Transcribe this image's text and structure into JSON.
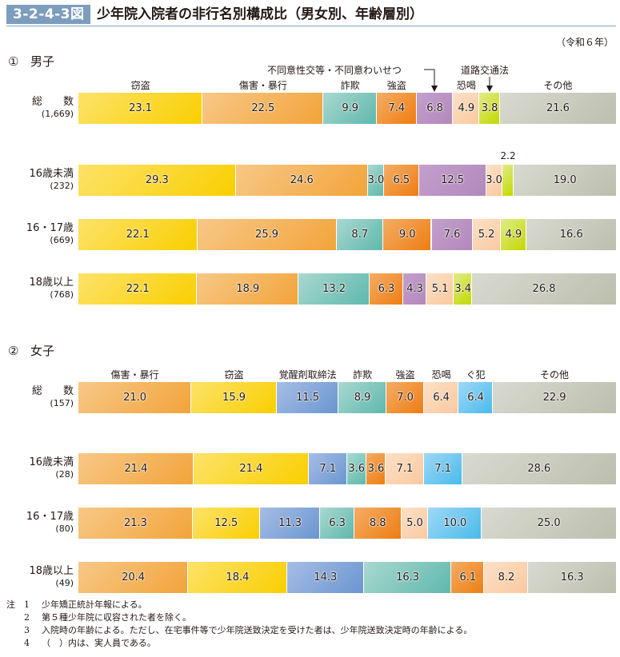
{
  "figure": {
    "number": "3-2-4-3図",
    "title": "少年院入院者の非行名別構成比（男女別、年齢層別）",
    "era": "（令和６年）"
  },
  "colors": {
    "窃盗": [
      "#fde26a",
      "#f9cf00"
    ],
    "傷害・暴行": [
      "#f7c887",
      "#f2a43a"
    ],
    "詐欺": [
      "#a9d8d0",
      "#5fb8ad"
    ],
    "強盗": [
      "#f4ad65",
      "#ee7d12"
    ],
    "不同意性交等・不同意わいせつ": [
      "#c3a0cc",
      "#b288bb"
    ],
    "恐喝": [
      "#fde0c6",
      "#f9c9a0"
    ],
    "道路交通法": [
      "#e0ec8a",
      "#c3d800"
    ],
    "その他": [
      "#d8dad0",
      "#bcbfae"
    ],
    "覚醒剤取締法": [
      "#a6bde6",
      "#6a96cf"
    ],
    "ぐ犯": [
      "#9fd8f7",
      "#49bbea"
    ]
  },
  "sections": [
    {
      "num": "①",
      "title": "男子",
      "category_labels": [
        "窃盗",
        "傷害・暴行",
        "詐欺",
        "強盗",
        "恐喝",
        "その他"
      ],
      "annotations": {
        "sexual": "不同意性交等・不同意わいせつ",
        "traffic": "道路交通法"
      },
      "rows": [
        {
          "name": "総　　数",
          "count": "(1,669)",
          "segments": [
            {
              "cat": "窃盗",
              "value": 23.1,
              "label": "23.1"
            },
            {
              "cat": "傷害・暴行",
              "value": 22.5,
              "label": "22.5"
            },
            {
              "cat": "詐欺",
              "value": 9.9,
              "label": "9.9"
            },
            {
              "cat": "強盗",
              "value": 7.4,
              "label": "7.4"
            },
            {
              "cat": "不同意性交等・不同意わいせつ",
              "value": 6.8,
              "label": "6.8"
            },
            {
              "cat": "恐喝",
              "value": 4.9,
              "label": "4.9"
            },
            {
              "cat": "道路交通法",
              "value": 3.8,
              "label": "3.8"
            },
            {
              "cat": "その他",
              "value": 21.6,
              "label": "21.6"
            }
          ]
        },
        {
          "name": "16歳未満",
          "count": "(232)",
          "segments": [
            {
              "cat": "窃盗",
              "value": 29.3,
              "label": "29.3"
            },
            {
              "cat": "傷害・暴行",
              "value": 24.6,
              "label": "24.6"
            },
            {
              "cat": "詐欺",
              "value": 3.0,
              "label": "3.0"
            },
            {
              "cat": "強盗",
              "value": 6.5,
              "label": "6.5"
            },
            {
              "cat": "不同意性交等・不同意わいせつ",
              "value": 12.5,
              "label": "12.5"
            },
            {
              "cat": "恐喝",
              "value": 3.0,
              "label": "3.0"
            },
            {
              "cat": "道路交通法",
              "value": 2.2,
              "label": "2.2",
              "outside": true
            },
            {
              "cat": "その他",
              "value": 19.0,
              "label": "19.0"
            }
          ]
        },
        {
          "name": "16・17歳",
          "count": "(669)",
          "segments": [
            {
              "cat": "窃盗",
              "value": 22.1,
              "label": "22.1"
            },
            {
              "cat": "傷害・暴行",
              "value": 25.9,
              "label": "25.9"
            },
            {
              "cat": "詐欺",
              "value": 8.7,
              "label": "8.7"
            },
            {
              "cat": "強盗",
              "value": 9.0,
              "label": "9.0"
            },
            {
              "cat": "不同意性交等・不同意わいせつ",
              "value": 7.6,
              "label": "7.6"
            },
            {
              "cat": "恐喝",
              "value": 5.2,
              "label": "5.2"
            },
            {
              "cat": "道路交通法",
              "value": 4.9,
              "label": "4.9"
            },
            {
              "cat": "その他",
              "value": 16.6,
              "label": "16.6"
            }
          ]
        },
        {
          "name": "18歳以上",
          "count": "(768)",
          "segments": [
            {
              "cat": "窃盗",
              "value": 22.1,
              "label": "22.1"
            },
            {
              "cat": "傷害・暴行",
              "value": 18.9,
              "label": "18.9"
            },
            {
              "cat": "詐欺",
              "value": 13.2,
              "label": "13.2"
            },
            {
              "cat": "強盗",
              "value": 6.3,
              "label": "6.3"
            },
            {
              "cat": "不同意性交等・不同意わいせつ",
              "value": 4.3,
              "label": "4.3"
            },
            {
              "cat": "恐喝",
              "value": 5.1,
              "label": "5.1"
            },
            {
              "cat": "道路交通法",
              "value": 3.4,
              "label": "3.4"
            },
            {
              "cat": "その他",
              "value": 26.8,
              "label": "26.8"
            }
          ]
        }
      ]
    },
    {
      "num": "②",
      "title": "女子",
      "category_labels": [
        "傷害・暴行",
        "窃盗",
        "覚醒剤取締法",
        "詐欺",
        "強盗",
        "恐喝",
        "ぐ犯",
        "その他"
      ],
      "rows": [
        {
          "name": "総　　数",
          "count": "(157)",
          "segments": [
            {
              "cat": "傷害・暴行",
              "value": 21.0,
              "label": "21.0"
            },
            {
              "cat": "窃盗",
              "value": 15.9,
              "label": "15.9"
            },
            {
              "cat": "覚醒剤取締法",
              "value": 11.5,
              "label": "11.5"
            },
            {
              "cat": "詐欺",
              "value": 8.9,
              "label": "8.9"
            },
            {
              "cat": "強盗",
              "value": 7.0,
              "label": "7.0"
            },
            {
              "cat": "恐喝",
              "value": 6.4,
              "label": "6.4"
            },
            {
              "cat": "ぐ犯",
              "value": 6.4,
              "label": "6.4"
            },
            {
              "cat": "その他",
              "value": 22.9,
              "label": "22.9"
            }
          ]
        },
        {
          "name": "16歳未満",
          "count": "(28)",
          "segments": [
            {
              "cat": "傷害・暴行",
              "value": 21.4,
              "label": "21.4"
            },
            {
              "cat": "窃盗",
              "value": 21.4,
              "label": "21.4"
            },
            {
              "cat": "覚醒剤取締法",
              "value": 7.1,
              "label": "7.1"
            },
            {
              "cat": "詐欺",
              "value": 3.6,
              "label": "3.6"
            },
            {
              "cat": "強盗",
              "value": 3.6,
              "label": "3.6"
            },
            {
              "cat": "恐喝",
              "value": 7.1,
              "label": "7.1"
            },
            {
              "cat": "ぐ犯",
              "value": 7.1,
              "label": "7.1"
            },
            {
              "cat": "その他",
              "value": 28.6,
              "label": "28.6"
            }
          ]
        },
        {
          "name": "16・17歳",
          "count": "(80)",
          "segments": [
            {
              "cat": "傷害・暴行",
              "value": 21.3,
              "label": "21.3"
            },
            {
              "cat": "窃盗",
              "value": 12.5,
              "label": "12.5"
            },
            {
              "cat": "覚醒剤取締法",
              "value": 11.3,
              "label": "11.3"
            },
            {
              "cat": "詐欺",
              "value": 6.3,
              "label": "6.3"
            },
            {
              "cat": "強盗",
              "value": 8.8,
              "label": "8.8"
            },
            {
              "cat": "恐喝",
              "value": 5.0,
              "label": "5.0"
            },
            {
              "cat": "ぐ犯",
              "value": 10.0,
              "label": "10.0"
            },
            {
              "cat": "その他",
              "value": 25.0,
              "label": "25.0"
            }
          ]
        },
        {
          "name": "18歳以上",
          "count": "(49)",
          "segments": [
            {
              "cat": "傷害・暴行",
              "value": 20.4,
              "label": "20.4"
            },
            {
              "cat": "窃盗",
              "value": 18.4,
              "label": "18.4"
            },
            {
              "cat": "覚醒剤取締法",
              "value": 14.3,
              "label": "14.3"
            },
            {
              "cat": "詐欺",
              "value": 16.3,
              "label": "16.3"
            },
            {
              "cat": "強盗",
              "value": 6.1,
              "label": "6.1"
            },
            {
              "cat": "恐喝",
              "value": 8.2,
              "label": "8.2"
            },
            {
              "cat": "その他",
              "value": 16.3,
              "label": "16.3"
            }
          ]
        }
      ]
    }
  ],
  "notes": {
    "head": "注",
    "items": [
      {
        "num": "1",
        "text": "少年矯正統計年報による。"
      },
      {
        "num": "2",
        "text": "第５種少年院に収容された者を除く。"
      },
      {
        "num": "3",
        "text": "入院時の年齢による。ただし、在宅事件等で少年院送致決定を受けた者は、少年院送致決定時の年齢による。"
      },
      {
        "num": "4",
        "text": "（　）内は、実人員である。"
      }
    ]
  },
  "chart_data": {
    "type": "bar",
    "orientation": "horizontal",
    "stacked": true,
    "unit": "%",
    "title": "少年院入院者の非行名別構成比（男女別、年齢層別）",
    "xlim": [
      0,
      100
    ],
    "panels": [
      {
        "title": "男子",
        "categories": [
          "総数 (1,669)",
          "16歳未満 (232)",
          "16・17歳 (669)",
          "18歳以上 (768)"
        ],
        "series": [
          {
            "name": "窃盗",
            "values": [
              23.1,
              29.3,
              22.1,
              22.1
            ]
          },
          {
            "name": "傷害・暴行",
            "values": [
              22.5,
              24.6,
              25.9,
              18.9
            ]
          },
          {
            "name": "詐欺",
            "values": [
              9.9,
              3.0,
              8.7,
              13.2
            ]
          },
          {
            "name": "強盗",
            "values": [
              7.4,
              6.5,
              9.0,
              6.3
            ]
          },
          {
            "name": "不同意性交等・不同意わいせつ",
            "values": [
              6.8,
              12.5,
              7.6,
              4.3
            ]
          },
          {
            "name": "恐喝",
            "values": [
              4.9,
              3.0,
              5.2,
              5.1
            ]
          },
          {
            "name": "道路交通法",
            "values": [
              3.8,
              2.2,
              4.9,
              3.4
            ]
          },
          {
            "name": "その他",
            "values": [
              21.6,
              19.0,
              16.6,
              26.8
            ]
          }
        ]
      },
      {
        "title": "女子",
        "categories": [
          "総数 (157)",
          "16歳未満 (28)",
          "16・17歳 (80)",
          "18歳以上 (49)"
        ],
        "series": [
          {
            "name": "傷害・暴行",
            "values": [
              21.0,
              21.4,
              21.3,
              20.4
            ]
          },
          {
            "name": "窃盗",
            "values": [
              15.9,
              21.4,
              12.5,
              18.4
            ]
          },
          {
            "name": "覚醒剤取締法",
            "values": [
              11.5,
              7.1,
              11.3,
              14.3
            ]
          },
          {
            "name": "詐欺",
            "values": [
              8.9,
              3.6,
              6.3,
              16.3
            ]
          },
          {
            "name": "強盗",
            "values": [
              7.0,
              3.6,
              8.8,
              6.1
            ]
          },
          {
            "name": "恐喝",
            "values": [
              6.4,
              7.1,
              5.0,
              8.2
            ]
          },
          {
            "name": "ぐ犯",
            "values": [
              6.4,
              7.1,
              10.0,
              0
            ]
          },
          {
            "name": "その他",
            "values": [
              22.9,
              28.6,
              25.0,
              16.3
            ]
          }
        ]
      }
    ]
  }
}
